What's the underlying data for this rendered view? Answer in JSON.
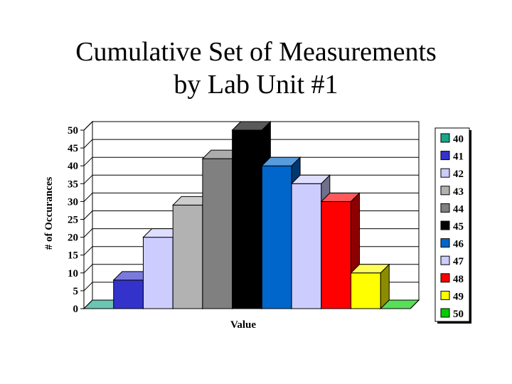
{
  "title_line1": "Cumulative Set of Measurements",
  "title_line2": "by Lab Unit #1",
  "chart_data": {
    "type": "bar",
    "title": "Cumulative Set of Measurements by Lab Unit #1",
    "xlabel": "Value",
    "ylabel": "# of Occurances",
    "ylim": [
      0,
      50
    ],
    "yticks": [
      "0",
      "5",
      "10",
      "15",
      "20",
      "25",
      "30",
      "35",
      "40",
      "45",
      "50"
    ],
    "legend_position": "right",
    "grid": true,
    "three_d": true,
    "series": [
      {
        "name": "40",
        "value": 0,
        "color": "#1aa68a"
      },
      {
        "name": "41",
        "value": 8,
        "color": "#3333cc"
      },
      {
        "name": "42",
        "value": 20,
        "color": "#ccccff"
      },
      {
        "name": "43",
        "value": 29,
        "color": "#b2b2b2"
      },
      {
        "name": "44",
        "value": 42,
        "color": "#808080"
      },
      {
        "name": "45",
        "value": 50,
        "color": "#000000"
      },
      {
        "name": "46",
        "value": 40,
        "color": "#0066cc"
      },
      {
        "name": "47",
        "value": 35,
        "color": "#ccccff"
      },
      {
        "name": "48",
        "value": 30,
        "color": "#ff0000"
      },
      {
        "name": "49",
        "value": 10,
        "color": "#ffff00"
      },
      {
        "name": "50",
        "value": 0,
        "color": "#00cc00"
      }
    ]
  }
}
